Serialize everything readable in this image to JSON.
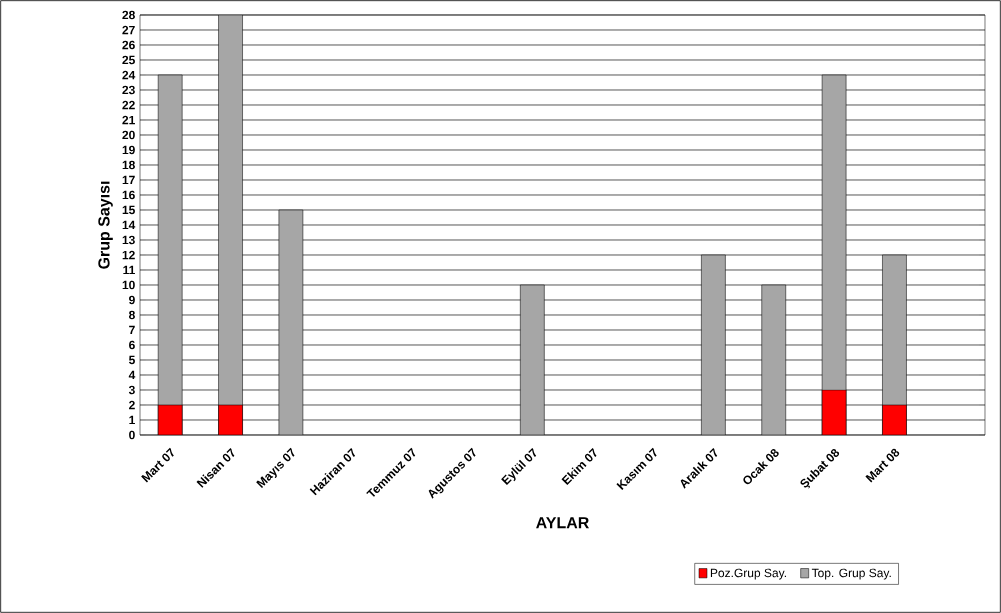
{
  "chart_data": {
    "type": "bar",
    "xlabel": "AYLAR",
    "ylabel": "Grup Sayısı",
    "categories": [
      "Mart 07",
      "Nisan 07",
      "Mayıs 07",
      "Haziran 07",
      "Temmuz 07",
      "Agustos 07",
      "Eylül 07",
      "Ekim 07",
      "Kasım 07",
      "Aralık 07",
      "Ocak 08",
      "Şubat 08",
      "Mart 08",
      null
    ],
    "series": [
      {
        "name": "Poz.Grup Say.",
        "color": "#ff0000",
        "values": [
          2,
          2,
          null,
          null,
          null,
          null,
          null,
          null,
          null,
          null,
          null,
          3,
          2,
          null
        ]
      },
      {
        "name": "Top. Grup Say.",
        "color": "#a6a6a6",
        "values": [
          24,
          28,
          15,
          null,
          null,
          null,
          10,
          null,
          null,
          12,
          10,
          24,
          12,
          null
        ]
      }
    ],
    "ylim": [
      0,
      28
    ],
    "yticks": [
      0,
      1,
      2,
      3,
      4,
      5,
      6,
      7,
      8,
      9,
      10,
      11,
      12,
      13,
      14,
      15,
      16,
      17,
      18,
      19,
      20,
      21,
      22,
      23,
      24,
      25,
      26,
      27,
      28
    ],
    "grid": "y",
    "legend": "bottom right"
  }
}
